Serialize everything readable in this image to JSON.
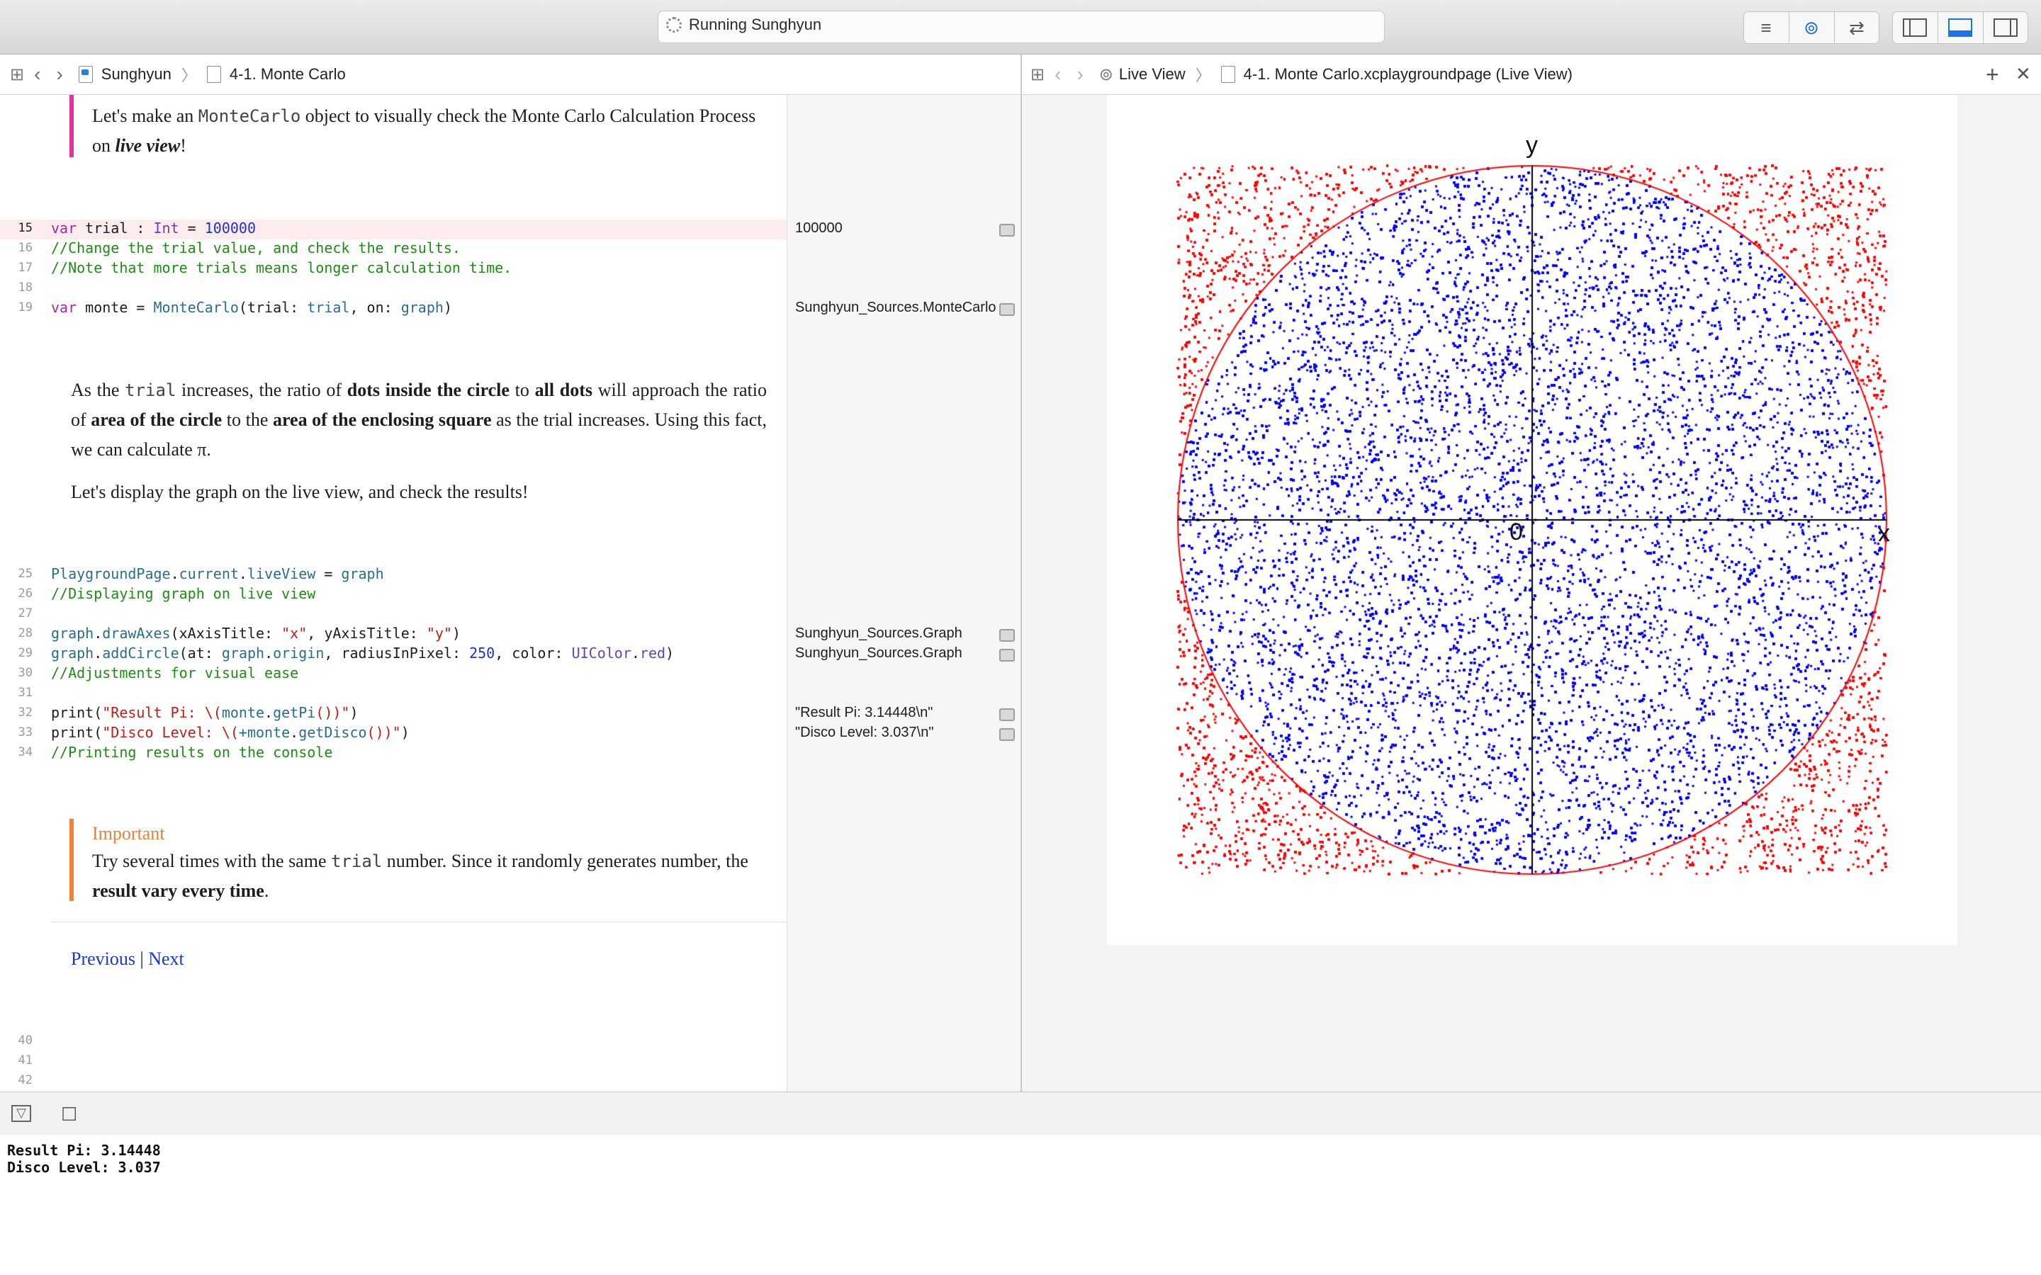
{
  "toolbar": {
    "status": "Running Sunghyun",
    "segments": [
      {
        "name": "standard-editor-icon",
        "glyph": "≡"
      },
      {
        "name": "assistant-editor-icon",
        "glyph": "⊚"
      },
      {
        "name": "version-editor-icon",
        "glyph": "⇄"
      }
    ],
    "panels": [
      {
        "name": "navigator-toggle-icon",
        "glyph": "▯"
      },
      {
        "name": "debug-area-toggle-icon",
        "glyph": "▭"
      },
      {
        "name": "utilities-toggle-icon",
        "glyph": "▯"
      }
    ]
  },
  "left_jumpbar": {
    "project": "Sunghyun",
    "page": "4-1. Monte Carlo"
  },
  "right_jumpbar": {
    "mode": "Live View",
    "file": "4-1. Monte Carlo.xcplaygroundpage (Live View)",
    "add": "+",
    "close": "✕"
  },
  "editor": {
    "intro_before": "Let's make an ",
    "intro_code": "MonteCarlo",
    "intro_after": " object to visually check the Monte Carlo Calculation Process on ",
    "intro_em": "live view",
    "intro_end": "!",
    "lines": [
      {
        "n": "15",
        "active": true
      },
      {
        "n": "16"
      },
      {
        "n": "17"
      },
      {
        "n": "18"
      },
      {
        "n": "19"
      },
      {
        "n": "25"
      },
      {
        "n": "26"
      },
      {
        "n": "27"
      },
      {
        "n": "28"
      },
      {
        "n": "29"
      },
      {
        "n": "30"
      },
      {
        "n": "31"
      },
      {
        "n": "32"
      },
      {
        "n": "33"
      },
      {
        "n": "34"
      },
      {
        "n": "40"
      },
      {
        "n": "41"
      },
      {
        "n": "42"
      }
    ],
    "code": {
      "l15": {
        "kw": "var",
        "name": " trial : ",
        "type": "Int",
        "eq": " = ",
        "num": "100000"
      },
      "l16": "//Change the trial value, and check the results.",
      "l17": "//Note that more trials means longer calculation time.",
      "l19": {
        "kw": "var",
        "a": " monte = ",
        "fn": "MonteCarlo",
        "b": "(trial: ",
        "arg": "trial",
        "c": ", on: ",
        "arg2": "graph",
        "d": ")"
      },
      "l25": {
        "a": "PlaygroundPage",
        "b": ".",
        "c": "current",
        "d": ".",
        "e": "liveView",
        "f": " = ",
        "g": "graph"
      },
      "l26": "//Displaying graph on live view",
      "l28": {
        "a": "graph",
        "b": ".",
        "c": "drawAxes",
        "d": "(xAxisTitle: ",
        "e": "\"x\"",
        "f": ", yAxisTitle: ",
        "g": "\"y\"",
        "h": ")"
      },
      "l29": {
        "a": "graph",
        "b": ".",
        "c": "addCircle",
        "d": "(at: ",
        "e": "graph",
        "f": ".",
        "g": "origin",
        "h": ", radiusInPixel: ",
        "i": "250",
        "j": ", color: ",
        "k": "UIColor",
        "l": ".",
        "m": "red",
        "n": ")"
      },
      "l30": "//Adjustments for visual ease",
      "l32": {
        "a": "print(",
        "b": "\"Result Pi: \\(",
        "c": "monte",
        "d": ".",
        "e": "getPi",
        "f": "())\"",
        "g": ")"
      },
      "l33": {
        "a": "print(",
        "b": "\"Disco Level: \\(",
        "c": "+monte",
        "d": ".",
        "e": "getDisco",
        "f": "())\"",
        "g": ")"
      },
      "l34": "//Printing results on the console"
    },
    "para1": {
      "t1": "As the ",
      "code": "trial",
      "t2": " increases, the ratio of ",
      "b1": "dots inside the circle",
      "t3": " to ",
      "b2": "all dots",
      "t4": " will approach the ratio of ",
      "b3": "area of the circle",
      "t5": " to the ",
      "b4": "area of the enclosing square",
      "t6": " as the trial increases. Using this fact, we can calculate π."
    },
    "para2": "Let's display the graph on the live view, and check the results!",
    "important": {
      "heading": "Important",
      "t1": "Try several times with the same ",
      "code": "trial",
      "t2": " number. Since it randomly generates number, the ",
      "b1": "result vary every time",
      "t3": "."
    },
    "nav": {
      "previous": "Previous",
      "sep": "|",
      "next": "Next"
    }
  },
  "results": {
    "r15": "100000",
    "r19": "Sunghyun_Sources.MonteCarlo",
    "r28": "Sunghyun_Sources.Graph",
    "r29": "Sunghyun_Sources.Graph",
    "r32": "\"Result Pi: 3.14448\\n\"",
    "r33": "\"Disco Level: 3.037\\n\""
  },
  "live_view": {
    "y_label": "y",
    "x_label": "x",
    "origin_label": "0",
    "outside_color": "#ff0000",
    "inside_color": "#0000ff",
    "circle_color": "#ff0000",
    "trial_count": 100000
  },
  "debug": {
    "hide_icon": "▽",
    "clear_icon": "☐"
  },
  "console": {
    "line1": "Result Pi: 3.14448",
    "line2": "Disco Level: 3.037"
  }
}
